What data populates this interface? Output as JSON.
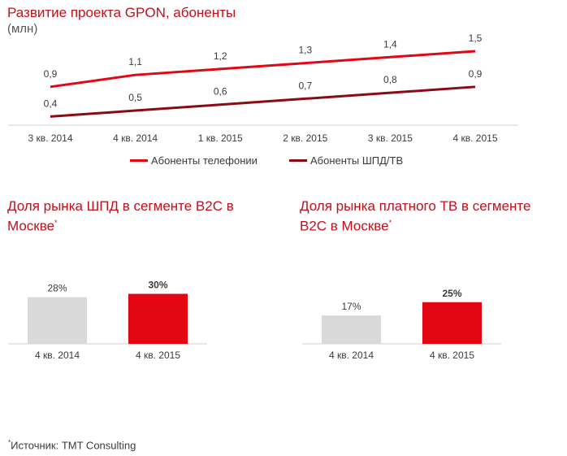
{
  "chart_data": [
    {
      "type": "line",
      "title": "Развитие проекта GPON, абоненты",
      "subtitle": "(млн)",
      "categories": [
        "3 кв. 2014",
        "4 кв. 2014",
        "1 кв. 2015",
        "2 кв. 2015",
        "3 кв. 2015",
        "4 кв. 2015"
      ],
      "series": [
        {
          "name": "Абоненты телефонии",
          "values": [
            0.9,
            1.1,
            1.2,
            1.3,
            1.4,
            1.5
          ],
          "labels": [
            "0,9",
            "1,1",
            "1,2",
            "1,3",
            "1,4",
            "1,5"
          ],
          "color": "#e30613"
        },
        {
          "name": "Абоненты ШПД/ТВ",
          "values": [
            0.4,
            0.5,
            0.6,
            0.7,
            0.8,
            0.9
          ],
          "labels": [
            "0,4",
            "0,5",
            "0,6",
            "0,7",
            "0,8",
            "0,9"
          ],
          "color": "#8b0a14"
        }
      ],
      "legend": "bottom-center",
      "grid": false
    },
    {
      "type": "bar",
      "title": "Доля рынка ШПД в сегменте B2C в Москве",
      "title_mark": "*",
      "categories": [
        "4 кв. 2014",
        "4 кв. 2015"
      ],
      "values": [
        28,
        30
      ],
      "labels": [
        "28%",
        "30%"
      ],
      "colors": [
        "#d9d9d9",
        "#e30613"
      ],
      "unit": "%"
    },
    {
      "type": "bar",
      "title": "Доля рынка платного ТВ в сегменте B2C в Москве",
      "title_mark": "*",
      "categories": [
        "4 кв. 2014",
        "4 кв. 2015"
      ],
      "values": [
        17,
        25
      ],
      "labels": [
        "17%",
        "25%"
      ],
      "colors": [
        "#d9d9d9",
        "#e30613"
      ],
      "unit": "%"
    }
  ],
  "footnote": {
    "mark": "*",
    "text": "Источник: TMT Consulting"
  }
}
